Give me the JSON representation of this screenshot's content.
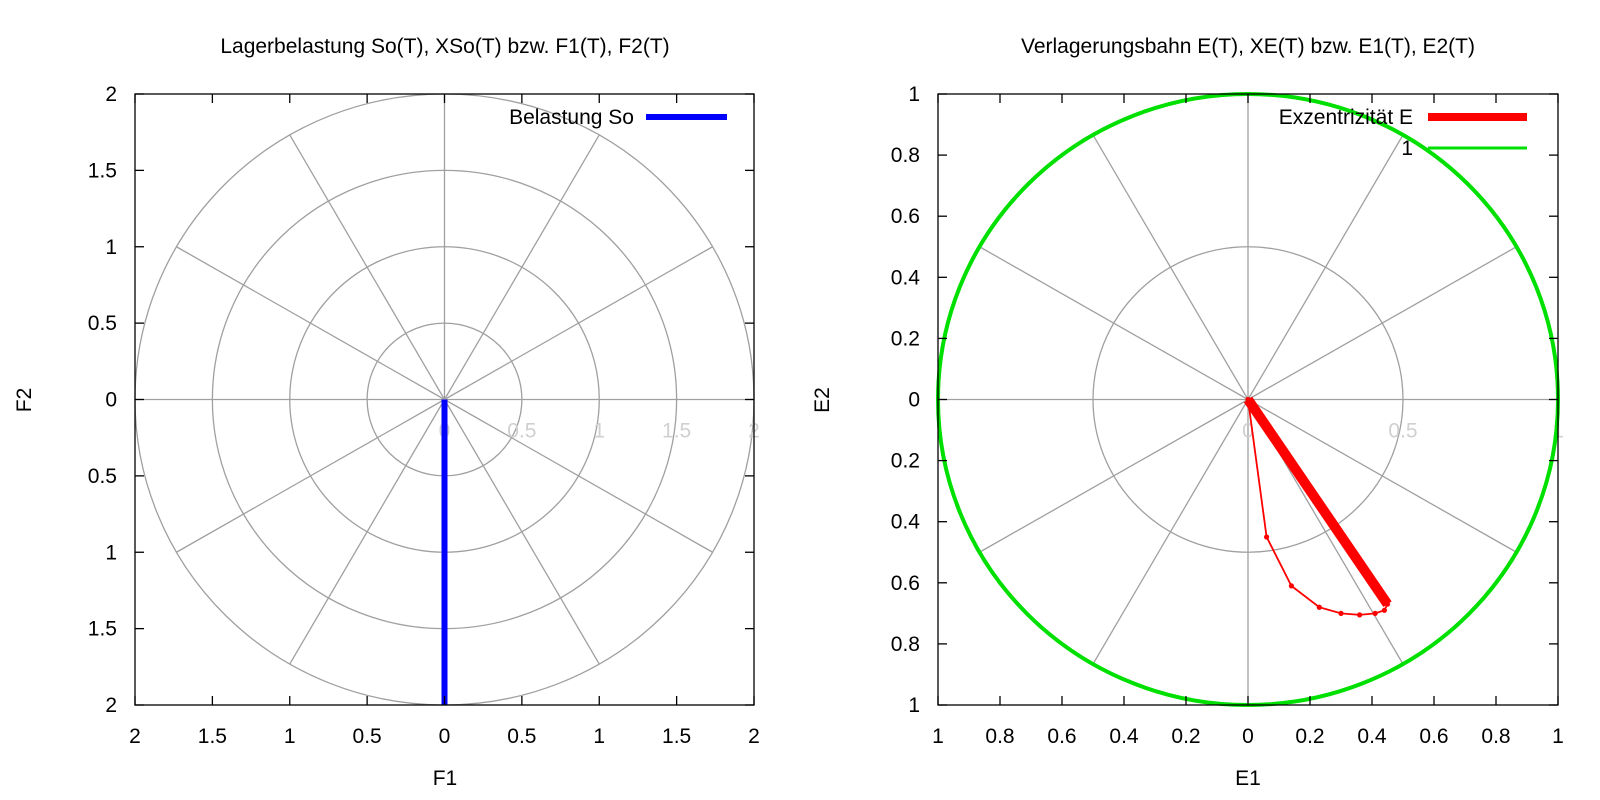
{
  "chart_data": [
    {
      "type": "polar-line",
      "title": "Lagerbelastung So(T), XSo(T) bzw. F1(T), F2(T)",
      "xlabel": "F1",
      "ylabel": "F2",
      "xlim": [
        -2,
        2
      ],
      "ylim": [
        -2,
        2
      ],
      "x_ticks": [
        "2",
        "1.5",
        "1",
        "0.5",
        "0",
        "0.5",
        "1",
        "1.5",
        "2"
      ],
      "y_ticks": [
        "2",
        "1.5",
        "1",
        "0.5",
        "0",
        "0.5",
        "1",
        "1.5",
        "2"
      ],
      "r_ticks": [
        "0",
        "0.5",
        "1",
        "1.5",
        "2"
      ],
      "grid": true,
      "legend_position": "top-right",
      "series": [
        {
          "name": "Belastung So",
          "color": "#0000ff",
          "points": [
            [
              0,
              0
            ],
            [
              0,
              -2
            ]
          ]
        }
      ]
    },
    {
      "type": "polar-line",
      "title": "Verlagerungsbahn E(T), XE(T) bzw. E1(T), E2(T)",
      "xlabel": "E1",
      "ylabel": "E2",
      "xlim": [
        -1,
        1
      ],
      "ylim": [
        -1,
        1
      ],
      "x_ticks": [
        "1",
        "0.8",
        "0.6",
        "0.4",
        "0.2",
        "0",
        "0.2",
        "0.4",
        "0.6",
        "0.8",
        "1"
      ],
      "y_ticks": [
        "1",
        "0.8",
        "0.6",
        "0.4",
        "0.2",
        "0",
        "0.2",
        "0.4",
        "0.6",
        "0.8",
        "1"
      ],
      "r_ticks": [
        "0",
        "0.5",
        "1"
      ],
      "grid": true,
      "legend_position": "top-right",
      "series": [
        {
          "name": "Exzentrizität E",
          "color": "#ff0000",
          "points": [
            [
              0,
              0
            ],
            [
              0.45,
              -0.67
            ]
          ]
        },
        {
          "name": "1",
          "color": "#00e000",
          "shape": "unit-circle",
          "radius": 1
        },
        {
          "name": "",
          "color": "#ff0000",
          "markers": true,
          "points": [
            [
              0,
              0
            ],
            [
              0.06,
              -0.45
            ],
            [
              0.14,
              -0.61
            ],
            [
              0.23,
              -0.68
            ],
            [
              0.3,
              -0.7
            ],
            [
              0.36,
              -0.705
            ],
            [
              0.41,
              -0.7
            ],
            [
              0.44,
              -0.69
            ],
            [
              0.45,
              -0.67
            ]
          ]
        }
      ]
    }
  ]
}
